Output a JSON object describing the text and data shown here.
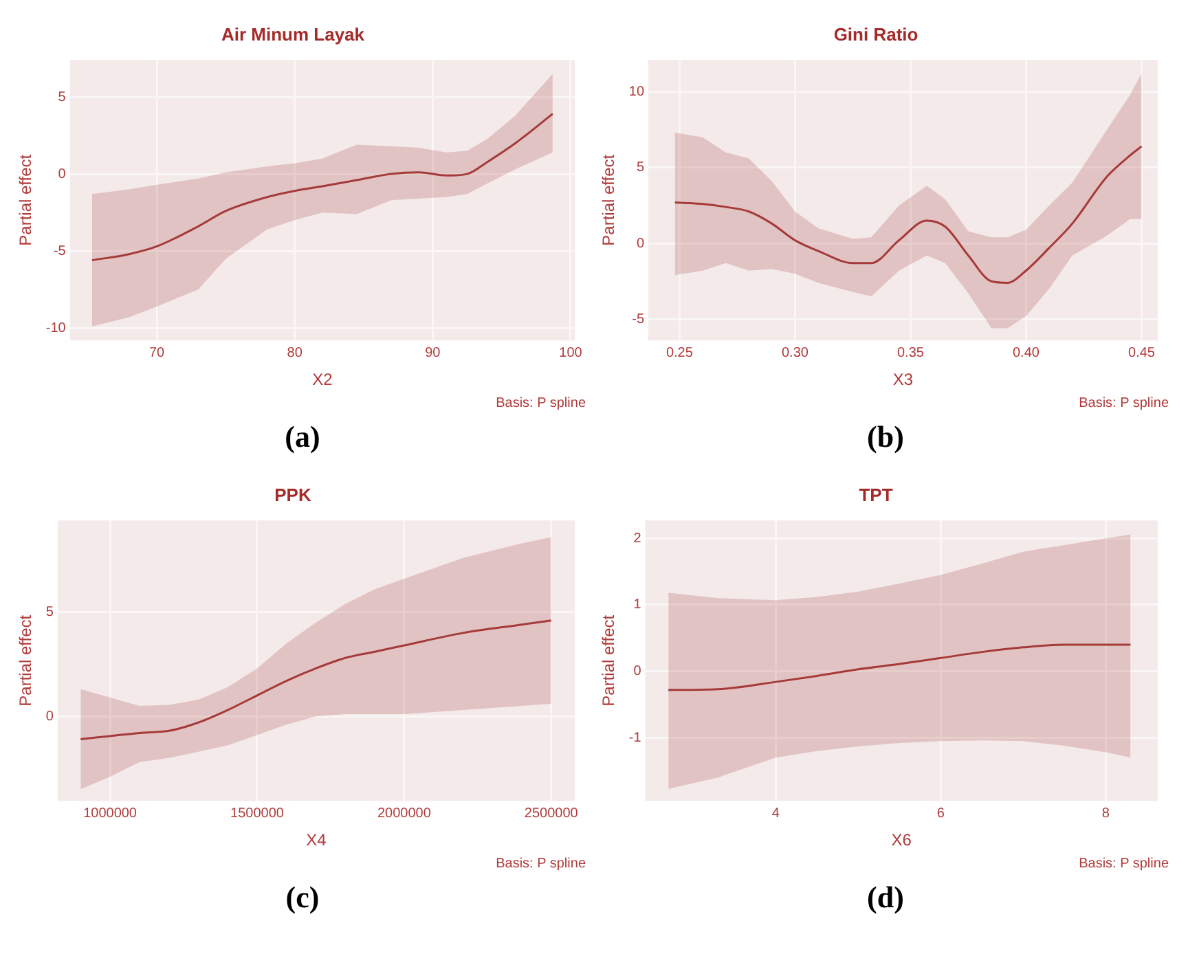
{
  "chart_data": [
    {
      "type": "line",
      "title": "Air Minum Layak",
      "xlabel": "X2",
      "ylabel": "Partial effect",
      "xlim": [
        63.7,
        100.3
      ],
      "ylim": [
        -10.8,
        7.4
      ],
      "xticks": [
        70,
        80,
        90,
        100
      ],
      "yticks": [
        -10,
        -5,
        0,
        5
      ],
      "grid": true,
      "annotations": [
        "Basis: P spline",
        "(a)"
      ],
      "series": [
        {
          "color": "#a63a3a",
          "x": [
            65.3,
            68,
            70,
            73,
            75,
            78,
            80,
            82,
            84.5,
            87,
            89,
            91,
            92.5,
            94,
            96,
            98.7
          ],
          "values": [
            -5.6,
            -5.2,
            -4.7,
            -3.4,
            -2.4,
            -1.5,
            -1.1,
            -0.8,
            -0.4,
            0,
            0.1,
            -0.1,
            0,
            0.8,
            2.0,
            3.9
          ],
          "lower": [
            -9.9,
            -9.3,
            -8.6,
            -7.5,
            -5.5,
            -3.6,
            -3.0,
            -2.5,
            -2.6,
            -1.7,
            -1.6,
            -1.5,
            -1.3,
            -0.6,
            0.3,
            1.4
          ],
          "upper": [
            -1.3,
            -1.0,
            -0.7,
            -0.3,
            0.1,
            0.5,
            0.7,
            1.0,
            1.9,
            1.8,
            1.7,
            1.4,
            1.5,
            2.3,
            3.8,
            6.5
          ]
        }
      ]
    },
    {
      "type": "line",
      "title": "Gini Ratio",
      "xlabel": "X3",
      "ylabel": "Partial effect",
      "xlim": [
        0.2365,
        0.457
      ],
      "ylim": [
        -6.4,
        12.1
      ],
      "xticks": [
        {
          "value": 0.25,
          "label": "0.25"
        },
        {
          "value": 0.3,
          "label": "0.30"
        },
        {
          "value": 0.35,
          "label": "0.35"
        },
        {
          "value": 0.4,
          "label": "0.40"
        },
        {
          "value": 0.45,
          "label": "0.45"
        }
      ],
      "yticks": [
        -5,
        0,
        5,
        10
      ],
      "grid": true,
      "annotations": [
        "Basis: P spline",
        "(b)"
      ],
      "series": [
        {
          "color": "#a63a3a",
          "x": [
            0.248,
            0.26,
            0.27,
            0.28,
            0.29,
            0.3,
            0.31,
            0.325,
            0.333,
            0.345,
            0.357,
            0.365,
            0.375,
            0.385,
            0.392,
            0.4,
            0.41,
            0.42,
            0.435,
            0.445,
            0.45
          ],
          "values": [
            2.7,
            2.6,
            2.4,
            2.1,
            1.3,
            0.2,
            -0.5,
            -1.3,
            -1.3,
            0.2,
            1.5,
            1.1,
            -0.8,
            -2.5,
            -2.6,
            -1.8,
            -0.3,
            1.3,
            4.4,
            5.8,
            6.4
          ],
          "lower": [
            -2.1,
            -1.8,
            -1.3,
            -1.8,
            -1.7,
            -2.0,
            -2.6,
            -3.2,
            -3.5,
            -1.8,
            -0.8,
            -1.3,
            -3.3,
            -5.6,
            -5.6,
            -4.8,
            -3.0,
            -0.8,
            0.5,
            1.6,
            1.6
          ],
          "upper": [
            7.3,
            7.0,
            6.0,
            5.6,
            4.1,
            2.1,
            1.0,
            0.3,
            0.4,
            2.5,
            3.8,
            2.9,
            0.8,
            0.4,
            0.4,
            0.9,
            2.5,
            4.0,
            7.5,
            9.8,
            11.2
          ]
        }
      ]
    },
    {
      "type": "line",
      "title": "PPK",
      "xlabel": "X4",
      "ylabel": "Partial effect",
      "xlim": [
        822000,
        2580000
      ],
      "ylim": [
        -4.06,
        9.4
      ],
      "xticks": [
        1000000,
        1500000,
        2000000,
        2500000
      ],
      "yticks": [
        0,
        5
      ],
      "grid": true,
      "annotations": [
        "Basis: P spline",
        "(c)"
      ],
      "series": [
        {
          "color": "#a63a3a",
          "x": [
            900000,
            1000000,
            1100000,
            1200000,
            1300000,
            1400000,
            1500000,
            1600000,
            1700000,
            1800000,
            1900000,
            2000000,
            2200000,
            2400000,
            2500000
          ],
          "values": [
            -1.1,
            -0.95,
            -0.8,
            -0.7,
            -0.3,
            0.3,
            1.0,
            1.7,
            2.3,
            2.8,
            3.1,
            3.4,
            4.0,
            4.4,
            4.6
          ],
          "lower": [
            -3.5,
            -2.9,
            -2.2,
            -2.0,
            -1.7,
            -1.4,
            -0.9,
            -0.4,
            0.0,
            0.1,
            0.1,
            0.1,
            0.3,
            0.5,
            0.6
          ],
          "upper": [
            1.3,
            0.9,
            0.5,
            0.55,
            0.8,
            1.4,
            2.3,
            3.5,
            4.5,
            5.4,
            6.1,
            6.6,
            7.6,
            8.3,
            8.6
          ]
        }
      ]
    },
    {
      "type": "line",
      "title": "TPT",
      "xlabel": "X6",
      "ylabel": "Partial effect",
      "xlim": [
        2.42,
        8.63
      ],
      "ylim": [
        -1.95,
        2.27
      ],
      "xticks": [
        4,
        6,
        8
      ],
      "yticks": [
        -1,
        0,
        1,
        2
      ],
      "grid": true,
      "annotations": [
        "Basis: P spline",
        "(d)"
      ],
      "series": [
        {
          "color": "#a63a3a",
          "x": [
            2.7,
            3.3,
            4,
            4.5,
            5,
            5.5,
            6,
            6.5,
            7,
            7.5,
            8,
            8.3
          ],
          "values": [
            -0.28,
            -0.27,
            -0.16,
            -0.07,
            0.03,
            0.11,
            0.2,
            0.29,
            0.36,
            0.4,
            0.4,
            0.4
          ],
          "lower": [
            -1.77,
            -1.6,
            -1.3,
            -1.2,
            -1.13,
            -1.08,
            -1.05,
            -1.04,
            -1.05,
            -1.12,
            -1.22,
            -1.3
          ],
          "upper": [
            1.18,
            1.1,
            1.07,
            1.12,
            1.2,
            1.32,
            1.45,
            1.62,
            1.8,
            1.9,
            2.0,
            2.06
          ]
        }
      ]
    }
  ]
}
